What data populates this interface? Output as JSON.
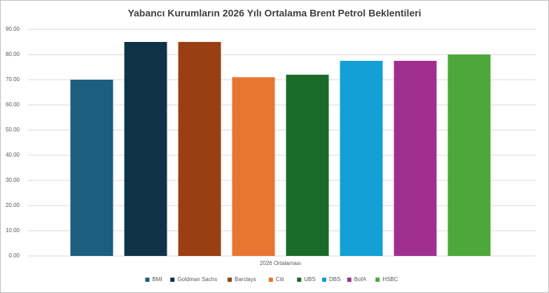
{
  "chart_data": {
    "type": "bar",
    "title": "Yabancı Kurumların 2026 Yılı Ortalama Brent Petrol  Beklentileri",
    "categories": [
      "2026 Ortalaması"
    ],
    "series": [
      {
        "name": "BMI",
        "color": "#1b5e80",
        "values": [
          70
        ]
      },
      {
        "name": "Goldman Sachs",
        "color": "#0e3349",
        "values": [
          85
        ]
      },
      {
        "name": "Barclays",
        "color": "#9a3f12",
        "values": [
          85
        ]
      },
      {
        "name": "Citi",
        "color": "#e87532",
        "values": [
          71
        ]
      },
      {
        "name": "UBS",
        "color": "#1a6b2a",
        "values": [
          72
        ]
      },
      {
        "name": "DBS",
        "color": "#12a0d7",
        "values": [
          77.5
        ]
      },
      {
        "name": "BofA",
        "color": "#a0308f",
        "values": [
          77.5
        ]
      },
      {
        "name": "HSBC",
        "color": "#4ea73a",
        "values": [
          80
        ]
      }
    ],
    "ylim": [
      0,
      90
    ],
    "yticks": [
      {
        "value": 0,
        "label": "0.00"
      },
      {
        "value": 10,
        "label": "10.00"
      },
      {
        "value": 20,
        "label": "20.00"
      },
      {
        "value": 30,
        "label": "30.00"
      },
      {
        "value": 40,
        "label": "40.00"
      },
      {
        "value": 50,
        "label": "50.00"
      },
      {
        "value": 60,
        "label": "60.00"
      },
      {
        "value": 70,
        "label": "70.00"
      },
      {
        "value": 80,
        "label": "80.00"
      },
      {
        "value": 90,
        "label": "90.00"
      }
    ],
    "grid": true,
    "legend": "bottom"
  }
}
